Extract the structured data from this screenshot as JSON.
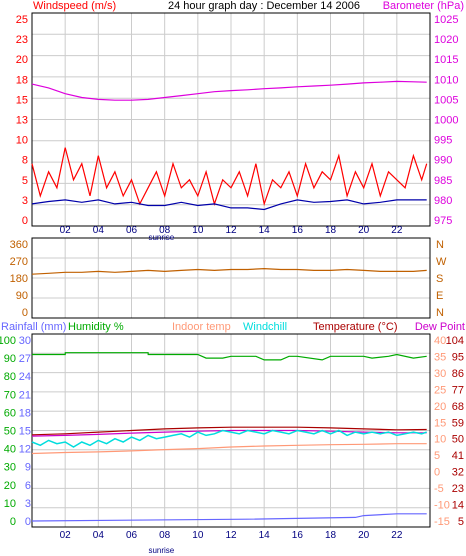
{
  "header": {
    "windspeed_label": "Windspeed (m/s)",
    "title": "24 hour graph day : December 14 2006",
    "barometer_label": "Barometer (hPa)"
  },
  "labels": {
    "sunrise": "sunrise",
    "rainfall": "Rainfall (mm)",
    "humidity": "Humidity %",
    "indoor_temp": "Indoor temp",
    "windchill": "Windchill",
    "temperature": "Temperature (°C)",
    "dew_point": "Dew Point"
  },
  "colors": {
    "wind": "#ff0000",
    "wind_avg": "#0000aa",
    "barometer": "#dd00dd",
    "direction": "#c06000",
    "rain": "#6666ff",
    "humidity": "#00aa00",
    "indoor": "#ff9977",
    "windchill": "#00dddd",
    "temperature": "#aa0000",
    "dewpoint": "#cc00cc",
    "grid": "#cccccc"
  },
  "chart_data": [
    {
      "type": "line",
      "name": "wind-barometer",
      "xlim": [
        0,
        24
      ],
      "x_ticks": [
        "02",
        "04",
        "06",
        "08",
        "10",
        "12",
        "14",
        "16",
        "18",
        "20",
        "22"
      ],
      "sunrise_hour": 7.8,
      "left_ticks": [
        "25",
        "23",
        "20",
        "18",
        "15",
        "13",
        "10",
        "8",
        "5",
        "3",
        "0"
      ],
      "right_ticks": [
        "1025",
        "1020",
        "1015",
        "1010",
        "1005",
        "1000",
        "995",
        "990",
        "985",
        "980",
        "975"
      ],
      "ylim_left": [
        0,
        25
      ],
      "ylim_right": [
        972.5,
        1025
      ],
      "series": [
        {
          "role": "barometer",
          "axis": "right",
          "x": [
            0,
            1,
            2,
            3,
            4,
            5,
            6,
            7,
            8,
            9,
            10,
            11,
            12,
            13,
            14,
            15,
            16,
            17,
            18,
            19,
            20,
            21,
            22,
            23,
            23.8
          ],
          "values": [
            1008,
            1007,
            1005.5,
            1004.5,
            1004,
            1003.8,
            1003.8,
            1004,
            1004.5,
            1005,
            1005.5,
            1006,
            1006.3,
            1006.5,
            1006.8,
            1007,
            1007.3,
            1007.5,
            1007.7,
            1008,
            1008.3,
            1008.5,
            1008.7,
            1008.6,
            1008.5
          ]
        },
        {
          "role": "gust",
          "axis": "left",
          "x": [
            0,
            0.5,
            1,
            1.5,
            2,
            2.5,
            3,
            3.5,
            4,
            4.5,
            5,
            5.5,
            6,
            6.5,
            7,
            7.5,
            8,
            8.5,
            9,
            9.5,
            10,
            10.5,
            11,
            11.5,
            12,
            12.5,
            13,
            13.5,
            14,
            14.5,
            15,
            15.5,
            16,
            16.5,
            17,
            17.5,
            18,
            18.5,
            19,
            19.5,
            20,
            20.5,
            21,
            21.5,
            22,
            22.5,
            23,
            23.5,
            23.8
          ],
          "values": [
            7,
            3,
            6,
            4,
            9,
            5,
            7,
            3,
            8,
            4,
            6,
            3,
            5,
            2,
            4,
            6,
            3,
            7,
            4,
            5,
            3,
            6,
            2,
            5,
            4,
            6,
            3,
            7,
            2,
            5,
            4,
            6,
            3,
            7,
            4,
            6,
            5,
            8,
            3,
            6,
            4,
            7,
            3,
            6,
            5,
            4,
            8,
            5,
            7
          ]
        },
        {
          "role": "average",
          "axis": "left",
          "x": [
            0,
            1,
            2,
            3,
            4,
            5,
            6,
            7,
            8,
            9,
            10,
            11,
            12,
            13,
            14,
            15,
            16,
            17,
            18,
            19,
            20,
            21,
            22,
            23,
            23.8
          ],
          "values": [
            2,
            2.3,
            2.5,
            2.2,
            2.5,
            2,
            2.2,
            1.8,
            1.8,
            2.2,
            1.8,
            2,
            1.5,
            1.5,
            1.3,
            2,
            2.5,
            2.2,
            2.3,
            2.5,
            2,
            2.2,
            2.5,
            2.5,
            2.5
          ]
        }
      ]
    },
    {
      "type": "line",
      "name": "wind-direction",
      "xlim": [
        0,
        24
      ],
      "left_ticks": [
        "360",
        "270",
        "180",
        "90",
        "0"
      ],
      "right_ticks": [
        "N",
        "W",
        "S",
        "E",
        "N"
      ],
      "ylim": [
        0,
        360
      ],
      "series": [
        {
          "role": "direction",
          "x": [
            0,
            1,
            2,
            3,
            4,
            5,
            6,
            7,
            8,
            9,
            10,
            11,
            12,
            13,
            14,
            15,
            16,
            17,
            18,
            19,
            20,
            21,
            22,
            23,
            23.8
          ],
          "values": [
            200,
            205,
            210,
            210,
            215,
            210,
            215,
            220,
            215,
            220,
            225,
            220,
            225,
            225,
            230,
            225,
            225,
            220,
            220,
            225,
            220,
            215,
            215,
            215,
            220
          ]
        }
      ]
    },
    {
      "type": "line",
      "name": "temp-humidity-rain",
      "xlim": [
        0,
        24
      ],
      "x_ticks": [
        "02",
        "04",
        "06",
        "08",
        "10",
        "12",
        "14",
        "16",
        "18",
        "20",
        "22"
      ],
      "sunrise_hour": 7.8,
      "humidity_ticks": [
        "100",
        "90",
        "80",
        "70",
        "60",
        "50",
        "40",
        "30",
        "20",
        "10",
        "0"
      ],
      "rain_ticks": [
        "30",
        "27",
        "24",
        "21",
        "18",
        "15",
        "12",
        "9",
        "6",
        "3",
        "0"
      ],
      "right_c_ticks": [
        "40",
        "35",
        "30",
        "25",
        "20",
        "15",
        "10",
        "5",
        "0",
        "-5",
        "-10",
        "-15"
      ],
      "right_f_ticks": [
        "104",
        "95",
        "86",
        "77",
        "68",
        "59",
        "50",
        "41",
        "32",
        "23",
        "14",
        "5"
      ],
      "ylim_humidity": [
        0,
        100
      ],
      "ylim_temp_c": [
        -15,
        40
      ],
      "series": [
        {
          "role": "humidity",
          "x": [
            0,
            2,
            2.01,
            7,
            7.01,
            10,
            10.5,
            11.5,
            12,
            13.5,
            14,
            15,
            15.5,
            16,
            17.5,
            18,
            20,
            20.5,
            21.5,
            22,
            23,
            23.8
          ],
          "values": [
            92,
            92,
            93,
            93,
            92,
            92,
            90,
            90,
            91,
            91,
            89,
            89,
            91,
            91,
            89,
            91,
            91,
            90,
            91,
            92,
            90,
            91
          ]
        },
        {
          "role": "temperature",
          "x": [
            0,
            2,
            4,
            6,
            8,
            10,
            12,
            14,
            16,
            18,
            20,
            22,
            23.8
          ],
          "values": [
            11.2,
            11.5,
            12,
            12.5,
            13,
            13.3,
            13.5,
            13.5,
            13.5,
            13.3,
            13,
            12.7,
            12.8
          ]
        },
        {
          "role": "dewpoint",
          "x": [
            0,
            2,
            4,
            6,
            8,
            10,
            12,
            14,
            16,
            18,
            20,
            22,
            23.8
          ],
          "values": [
            10.8,
            11,
            11.3,
            11.7,
            12,
            12.3,
            12.5,
            12.5,
            12.5,
            12.3,
            12,
            11.8,
            11.8
          ]
        },
        {
          "role": "windchill",
          "x": [
            0,
            0.5,
            1,
            1.5,
            2,
            2.5,
            3,
            3.5,
            4,
            4.5,
            5,
            5.5,
            6,
            6.5,
            7,
            7.5,
            8,
            8.5,
            9,
            9.5,
            10,
            10.5,
            11,
            11.5,
            12,
            12.5,
            13,
            13.5,
            14,
            14.5,
            15,
            15.5,
            16,
            16.5,
            17,
            17.5,
            18,
            18.5,
            19,
            19.5,
            20,
            20.5,
            21,
            21.5,
            22,
            22.5,
            23,
            23.5,
            23.8
          ],
          "values": [
            9,
            8,
            9.5,
            8.5,
            9,
            7.5,
            9,
            8,
            9.5,
            8.5,
            10,
            9,
            10.5,
            9.5,
            11,
            10,
            10.5,
            11,
            11.5,
            10.5,
            12,
            11,
            11.5,
            12.5,
            12,
            11.5,
            12.5,
            12,
            11.5,
            12.5,
            12,
            11.5,
            12.5,
            12,
            11.5,
            12.5,
            11.5,
            12.5,
            11,
            12,
            11.5,
            12,
            11.5,
            12,
            11,
            11.5,
            12,
            11.5,
            12
          ]
        },
        {
          "role": "indoor",
          "x": [
            0,
            2,
            4,
            6,
            8,
            10,
            12,
            14,
            16,
            18,
            20,
            22,
            23.8
          ],
          "values": [
            5.5,
            5.8,
            6,
            6.3,
            6.7,
            7,
            7.5,
            7.8,
            8,
            8.2,
            8.3,
            8.5,
            8.5
          ]
        },
        {
          "role": "rain",
          "x": [
            0,
            13,
            19.5,
            20,
            22,
            23.8
          ],
          "values": [
            0,
            0.3,
            0.6,
            0.9,
            1.2,
            1.2
          ]
        }
      ]
    }
  ]
}
